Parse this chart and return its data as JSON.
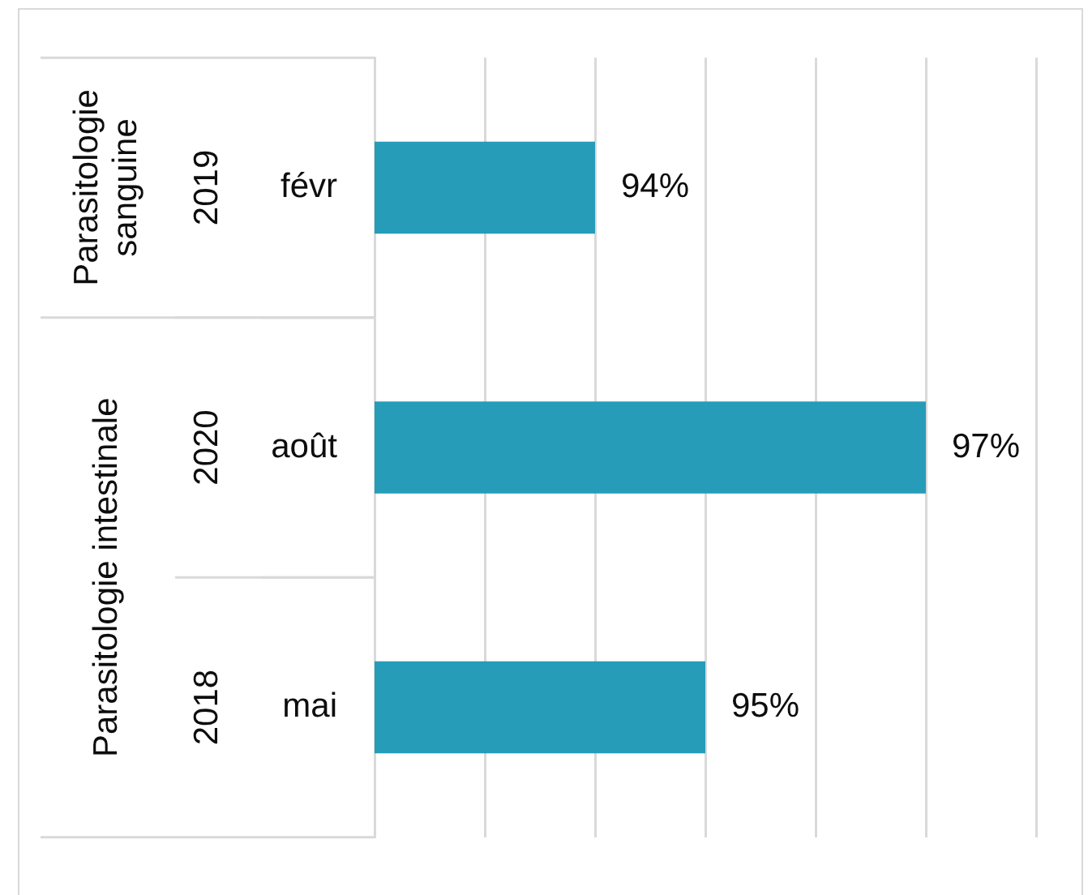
{
  "chart_data": {
    "type": "bar",
    "orientation": "horizontal",
    "categories": [
      "févr",
      "août",
      "mai"
    ],
    "values": [
      94,
      97,
      95
    ],
    "color": "#269cb9",
    "xlim": [
      92,
      98
    ],
    "xticks": [
      {
        "value": 92,
        "label": null
      },
      {
        "value": 93,
        "label": null
      },
      {
        "value": 94,
        "label": null
      },
      {
        "value": 95,
        "label": null
      },
      {
        "value": 96,
        "label": null
      },
      {
        "value": 97,
        "label": null
      },
      {
        "value": 98,
        "label": null
      }
    ],
    "grid": "x",
    "tick_labels": "y",
    "value_labels": [
      "94%",
      "97%",
      "95%"
    ],
    "annotations": [
      "2019",
      "2020",
      "2018",
      "Parasitologie sanguine",
      "Parasitologie intestinale"
    ]
  }
}
